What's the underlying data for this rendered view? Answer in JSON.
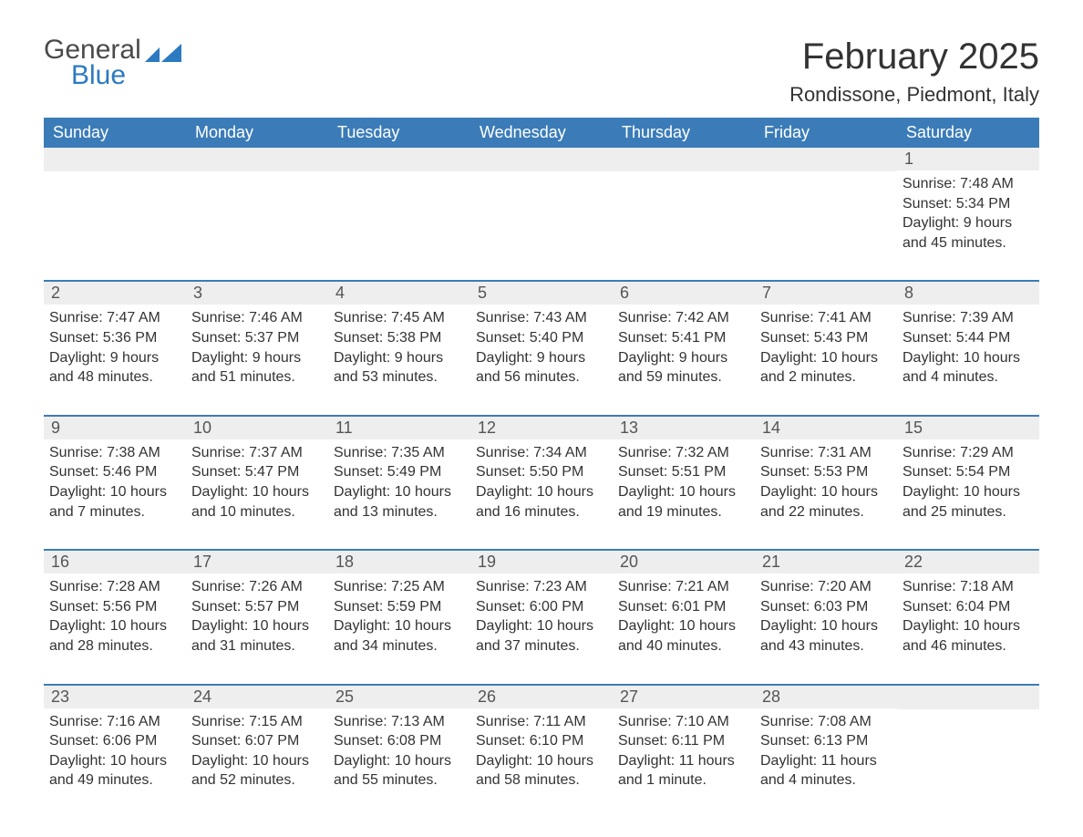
{
  "logo": {
    "general": "General",
    "blue": "Blue"
  },
  "title": "February 2025",
  "location": "Rondissone, Piedmont, Italy",
  "colors": {
    "header_bg": "#3b7cb8",
    "header_text": "#ffffff",
    "row_border": "#3b7cb8",
    "daynum_bg": "#eeeeee",
    "text": "#333333",
    "logo_gray": "#4a4a4a",
    "logo_blue": "#2c7ac0",
    "page_bg": "#ffffff"
  },
  "weekdays": [
    "Sunday",
    "Monday",
    "Tuesday",
    "Wednesday",
    "Thursday",
    "Friday",
    "Saturday"
  ],
  "weeks": [
    [
      null,
      null,
      null,
      null,
      null,
      null,
      {
        "day": "1",
        "sunrise": "Sunrise: 7:48 AM",
        "sunset": "Sunset: 5:34 PM",
        "daylight1": "Daylight: 9 hours",
        "daylight2": "and 45 minutes."
      }
    ],
    [
      {
        "day": "2",
        "sunrise": "Sunrise: 7:47 AM",
        "sunset": "Sunset: 5:36 PM",
        "daylight1": "Daylight: 9 hours",
        "daylight2": "and 48 minutes."
      },
      {
        "day": "3",
        "sunrise": "Sunrise: 7:46 AM",
        "sunset": "Sunset: 5:37 PM",
        "daylight1": "Daylight: 9 hours",
        "daylight2": "and 51 minutes."
      },
      {
        "day": "4",
        "sunrise": "Sunrise: 7:45 AM",
        "sunset": "Sunset: 5:38 PM",
        "daylight1": "Daylight: 9 hours",
        "daylight2": "and 53 minutes."
      },
      {
        "day": "5",
        "sunrise": "Sunrise: 7:43 AM",
        "sunset": "Sunset: 5:40 PM",
        "daylight1": "Daylight: 9 hours",
        "daylight2": "and 56 minutes."
      },
      {
        "day": "6",
        "sunrise": "Sunrise: 7:42 AM",
        "sunset": "Sunset: 5:41 PM",
        "daylight1": "Daylight: 9 hours",
        "daylight2": "and 59 minutes."
      },
      {
        "day": "7",
        "sunrise": "Sunrise: 7:41 AM",
        "sunset": "Sunset: 5:43 PM",
        "daylight1": "Daylight: 10 hours",
        "daylight2": "and 2 minutes."
      },
      {
        "day": "8",
        "sunrise": "Sunrise: 7:39 AM",
        "sunset": "Sunset: 5:44 PM",
        "daylight1": "Daylight: 10 hours",
        "daylight2": "and 4 minutes."
      }
    ],
    [
      {
        "day": "9",
        "sunrise": "Sunrise: 7:38 AM",
        "sunset": "Sunset: 5:46 PM",
        "daylight1": "Daylight: 10 hours",
        "daylight2": "and 7 minutes."
      },
      {
        "day": "10",
        "sunrise": "Sunrise: 7:37 AM",
        "sunset": "Sunset: 5:47 PM",
        "daylight1": "Daylight: 10 hours",
        "daylight2": "and 10 minutes."
      },
      {
        "day": "11",
        "sunrise": "Sunrise: 7:35 AM",
        "sunset": "Sunset: 5:49 PM",
        "daylight1": "Daylight: 10 hours",
        "daylight2": "and 13 minutes."
      },
      {
        "day": "12",
        "sunrise": "Sunrise: 7:34 AM",
        "sunset": "Sunset: 5:50 PM",
        "daylight1": "Daylight: 10 hours",
        "daylight2": "and 16 minutes."
      },
      {
        "day": "13",
        "sunrise": "Sunrise: 7:32 AM",
        "sunset": "Sunset: 5:51 PM",
        "daylight1": "Daylight: 10 hours",
        "daylight2": "and 19 minutes."
      },
      {
        "day": "14",
        "sunrise": "Sunrise: 7:31 AM",
        "sunset": "Sunset: 5:53 PM",
        "daylight1": "Daylight: 10 hours",
        "daylight2": "and 22 minutes."
      },
      {
        "day": "15",
        "sunrise": "Sunrise: 7:29 AM",
        "sunset": "Sunset: 5:54 PM",
        "daylight1": "Daylight: 10 hours",
        "daylight2": "and 25 minutes."
      }
    ],
    [
      {
        "day": "16",
        "sunrise": "Sunrise: 7:28 AM",
        "sunset": "Sunset: 5:56 PM",
        "daylight1": "Daylight: 10 hours",
        "daylight2": "and 28 minutes."
      },
      {
        "day": "17",
        "sunrise": "Sunrise: 7:26 AM",
        "sunset": "Sunset: 5:57 PM",
        "daylight1": "Daylight: 10 hours",
        "daylight2": "and 31 minutes."
      },
      {
        "day": "18",
        "sunrise": "Sunrise: 7:25 AM",
        "sunset": "Sunset: 5:59 PM",
        "daylight1": "Daylight: 10 hours",
        "daylight2": "and 34 minutes."
      },
      {
        "day": "19",
        "sunrise": "Sunrise: 7:23 AM",
        "sunset": "Sunset: 6:00 PM",
        "daylight1": "Daylight: 10 hours",
        "daylight2": "and 37 minutes."
      },
      {
        "day": "20",
        "sunrise": "Sunrise: 7:21 AM",
        "sunset": "Sunset: 6:01 PM",
        "daylight1": "Daylight: 10 hours",
        "daylight2": "and 40 minutes."
      },
      {
        "day": "21",
        "sunrise": "Sunrise: 7:20 AM",
        "sunset": "Sunset: 6:03 PM",
        "daylight1": "Daylight: 10 hours",
        "daylight2": "and 43 minutes."
      },
      {
        "day": "22",
        "sunrise": "Sunrise: 7:18 AM",
        "sunset": "Sunset: 6:04 PM",
        "daylight1": "Daylight: 10 hours",
        "daylight2": "and 46 minutes."
      }
    ],
    [
      {
        "day": "23",
        "sunrise": "Sunrise: 7:16 AM",
        "sunset": "Sunset: 6:06 PM",
        "daylight1": "Daylight: 10 hours",
        "daylight2": "and 49 minutes."
      },
      {
        "day": "24",
        "sunrise": "Sunrise: 7:15 AM",
        "sunset": "Sunset: 6:07 PM",
        "daylight1": "Daylight: 10 hours",
        "daylight2": "and 52 minutes."
      },
      {
        "day": "25",
        "sunrise": "Sunrise: 7:13 AM",
        "sunset": "Sunset: 6:08 PM",
        "daylight1": "Daylight: 10 hours",
        "daylight2": "and 55 minutes."
      },
      {
        "day": "26",
        "sunrise": "Sunrise: 7:11 AM",
        "sunset": "Sunset: 6:10 PM",
        "daylight1": "Daylight: 10 hours",
        "daylight2": "and 58 minutes."
      },
      {
        "day": "27",
        "sunrise": "Sunrise: 7:10 AM",
        "sunset": "Sunset: 6:11 PM",
        "daylight1": "Daylight: 11 hours",
        "daylight2": "and 1 minute."
      },
      {
        "day": "28",
        "sunrise": "Sunrise: 7:08 AM",
        "sunset": "Sunset: 6:13 PM",
        "daylight1": "Daylight: 11 hours",
        "daylight2": "and 4 minutes."
      },
      null
    ]
  ]
}
